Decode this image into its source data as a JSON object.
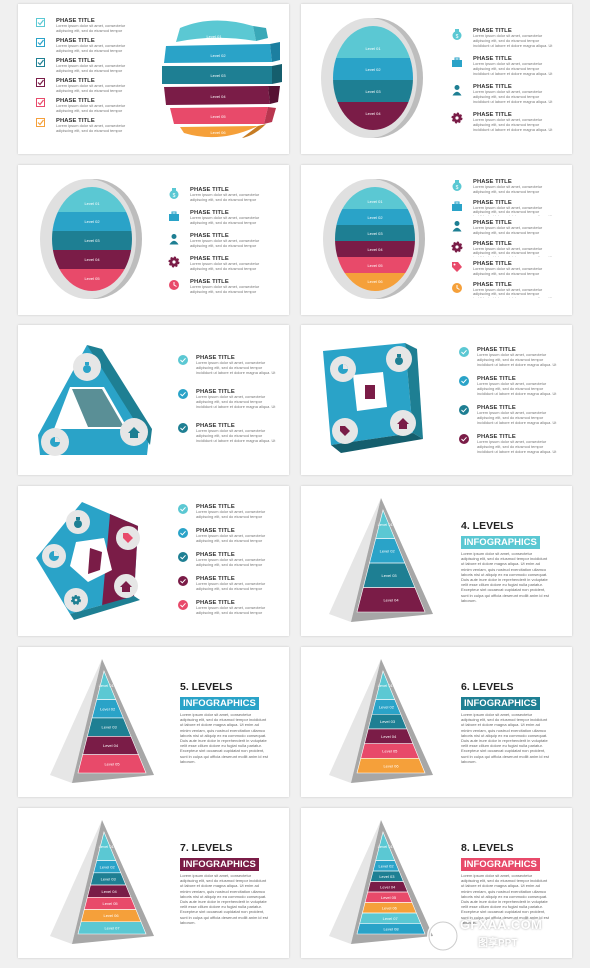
{
  "phase_title": "PHASE TITLE",
  "phase_body": "Lorem ipsum dolor sit amet, consectetur adipiscing elit, sed do eiusmod tempor incididunt ut labore et dolore magna aliqua. Ut enim ad minim veniam",
  "levels_body": "Lorem ipsum dolor sit amet, consectetur adipiscing elit, sed do eiusmod tempor incididunt ut labore et dolore magna aliqua. Ut enim ad minim veniam, quis nostrud exercitation ullamco laboris nisi ut aliquip ex ea commodo consequat. Duis aute irure dolor in reprehenderit in voluptate velit esse cillum dolore eu fugiat nulla pariatur. Excepteur sint occaecat cupidatat non proident, sunt in culpa qui officia deserunt mollit anim id est laborum.",
  "infographics": "INFOGRAPHICS",
  "level_labels": [
    "Level 01",
    "Level 02",
    "Level 03",
    "Level 04",
    "Level 05",
    "Level 06",
    "Level 07",
    "Level 08"
  ],
  "slides": {
    "s1": {
      "level_labels": [
        "Level 01",
        "Level 02",
        "Level 03",
        "Level 04",
        "Level 05",
        "Level 06"
      ]
    },
    "s8": {
      "title": "4. LEVELS"
    },
    "s9": {
      "title": "5. LEVELS"
    },
    "s10": {
      "title": "6. LEVELS"
    },
    "s11": {
      "title": "7. LEVELS"
    },
    "s12": {
      "title": "8. LEVELS"
    }
  },
  "colors": {
    "cyan": "#5bc8d3",
    "blue": "#2aa3c8",
    "teal": "#1e7f93",
    "maroon": "#7a1c47",
    "pink": "#e84a6a",
    "orange": "#f5a03a",
    "badge_4": "#5bc8d3",
    "badge_5": "#2aa3c8",
    "badge_6": "#1e7f93",
    "badge_7": "#7a1c47",
    "badge_8": "#e84a6a"
  },
  "icons": [
    "check-square-icon",
    "money-bag-icon",
    "briefcase-icon",
    "person-icon",
    "gear-icon",
    "tag-icon",
    "clock-icon",
    "pie-chart-icon",
    "home-icon",
    "check-circle-icon"
  ],
  "watermark": {
    "main": "GFXAA.COM",
    "sub": "图享PPT"
  }
}
